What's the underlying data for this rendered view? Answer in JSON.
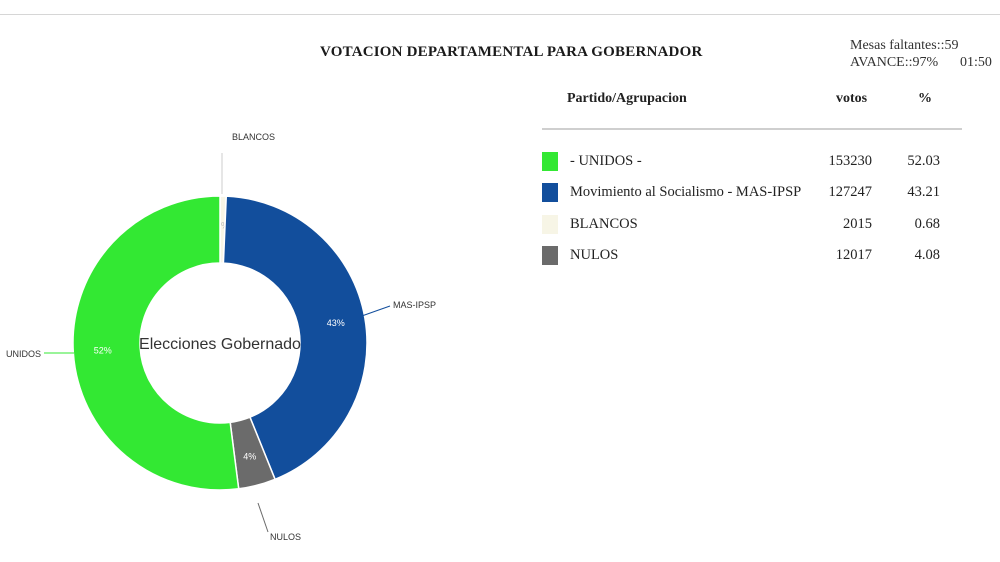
{
  "header": {
    "title": "VOTACION DEPARTAMENTAL PARA GOBERNADOR",
    "mesas_faltantes": "Mesas faltantes::59",
    "avance": "AVANCE::97%",
    "time": "01:50"
  },
  "legend": {
    "col_party": "Partido/Agrupacion",
    "col_votes": "votos",
    "col_pct": "%",
    "rows": [
      {
        "label": "- UNIDOS -",
        "votes": "153230",
        "pct": "52.03",
        "color": "#33e833"
      },
      {
        "label": "Movimiento al Socialismo - MAS-IPSP",
        "votes": "127247",
        "pct": "43.21",
        "color": "#124e9c"
      },
      {
        "label": "BLANCOS",
        "votes": "2015",
        "pct": "0.68",
        "color": "#f7f5e6"
      },
      {
        "label": "NULOS",
        "votes": "12017",
        "pct": "4.08",
        "color": "#6b6b6b"
      }
    ]
  },
  "chart_data": {
    "type": "pie",
    "title": "Elecciones Gobernado",
    "start": "top",
    "direction": "clockwise",
    "slices": [
      {
        "label": "BLANCOS",
        "value": 0.68,
        "display": "1%",
        "color": "#f7f5e6"
      },
      {
        "label": "MAS-IPSP",
        "value": 43.21,
        "display": "43%",
        "color": "#124e9c"
      },
      {
        "label": "NULOS",
        "value": 4.08,
        "display": "4%",
        "color": "#6b6b6b"
      },
      {
        "label": "UNIDOS",
        "value": 52.03,
        "display": "52%",
        "color": "#33e833"
      }
    ]
  }
}
